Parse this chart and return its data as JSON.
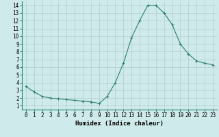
{
  "x": [
    0,
    1,
    2,
    3,
    4,
    5,
    6,
    7,
    8,
    9,
    10,
    11,
    12,
    13,
    14,
    15,
    16,
    17,
    18,
    19,
    20,
    21,
    22,
    23
  ],
  "y": [
    3.5,
    2.8,
    2.2,
    2.0,
    1.9,
    1.8,
    1.7,
    1.6,
    1.5,
    1.3,
    2.2,
    4.0,
    6.5,
    9.8,
    12.0,
    14.0,
    14.0,
    13.0,
    11.5,
    9.0,
    7.7,
    6.8,
    6.5,
    6.3
  ],
  "line_color": "#2e7d6e",
  "marker": "+",
  "marker_size": 3,
  "bg_color": "#ceeaea",
  "grid_color": "#b0cccc",
  "xlabel": "Humidex (Indice chaleur)",
  "xlabel_fontsize": 6.5,
  "tick_fontsize": 5.5,
  "xlim": [
    -0.5,
    23.5
  ],
  "ylim": [
    0.5,
    14.5
  ],
  "yticks": [
    1,
    2,
    3,
    4,
    5,
    6,
    7,
    8,
    9,
    10,
    11,
    12,
    13,
    14
  ],
  "xticks": [
    0,
    1,
    2,
    3,
    4,
    5,
    6,
    7,
    8,
    9,
    10,
    11,
    12,
    13,
    14,
    15,
    16,
    17,
    18,
    19,
    20,
    21,
    22,
    23
  ],
  "spine_color": "#2e7d6e",
  "linewidth": 0.8,
  "markeredgewidth": 0.8
}
